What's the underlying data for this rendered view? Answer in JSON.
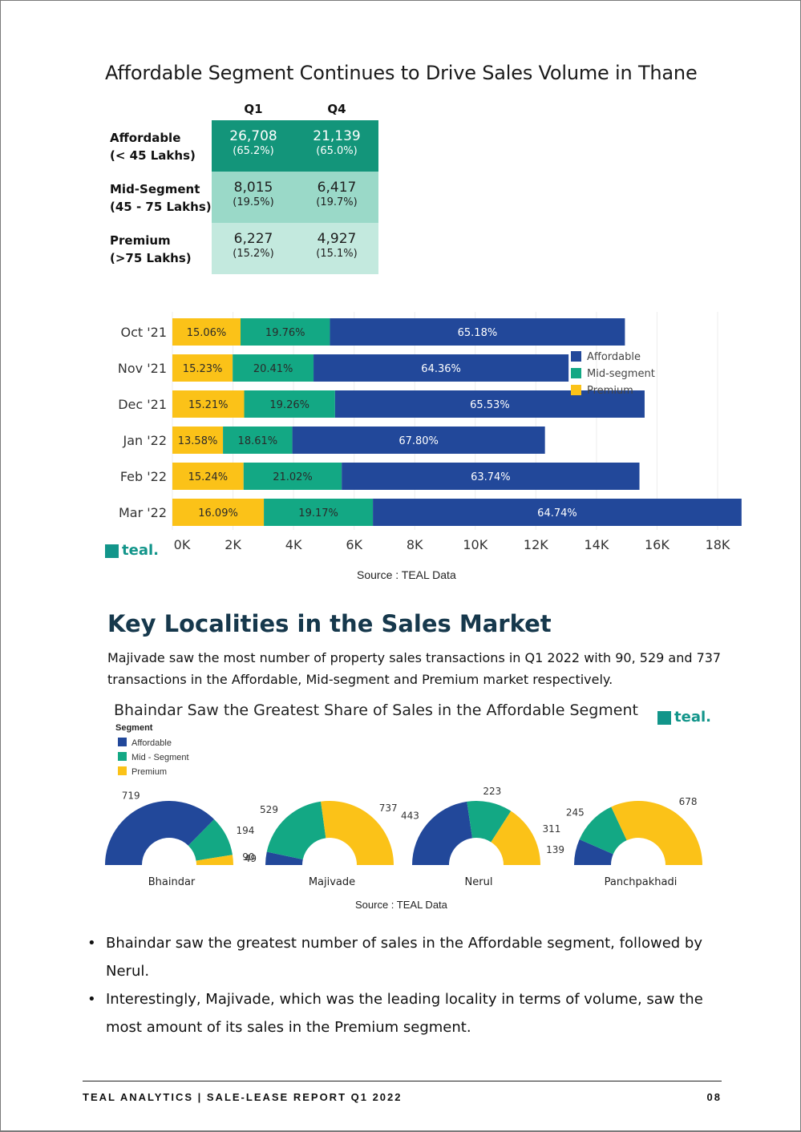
{
  "colors": {
    "affordable": "#22489a",
    "mid_segment": "#13a884",
    "premium": "#fbc218",
    "teal": "#12958a",
    "heading": "#16384c"
  },
  "title": "Affordable Segment Continues to Drive Sales Volume in Thane",
  "summary_table": {
    "headers": [
      "Q1",
      "Q4"
    ],
    "rows": [
      {
        "label_line1": "Affordable",
        "label_line2": "(< 45 Lakhs)",
        "q1": "26,708",
        "q1_pct": "(65.2%)",
        "q4": "21,139",
        "q4_pct": "(65.0%)"
      },
      {
        "label_line1": "Mid-Segment",
        "label_line2": "(45 - 75 Lakhs)",
        "q1": "8,015",
        "q1_pct": "(19.5%)",
        "q4": "6,417",
        "q4_pct": "(19.7%)"
      },
      {
        "label_line1": "Premium",
        "label_line2": "(>75 Lakhs)",
        "q1": "6,227",
        "q1_pct": "(15.2%)",
        "q4": "4,927",
        "q4_pct": "(15.1%)"
      }
    ]
  },
  "logo_text": "teal.",
  "source_text": "Source : TEAL Data",
  "section_heading": "Key Localities in the Sales Market",
  "section_text": "Majivade saw the most number of property sales transactions in Q1 2022 with 90, 529 and 737 transactions in the Affordable, Mid-segment and Premium market respectively.",
  "chart_data": [
    {
      "type": "bar",
      "orientation": "horizontal",
      "stacked": true,
      "categories": [
        "Oct '21",
        "Nov '21",
        "Dec '21",
        "Jan '22",
        "Feb '22",
        "Mar '22"
      ],
      "series": [
        {
          "name": "Premium",
          "values": [
            2250,
            1990,
            2370,
            1670,
            2350,
            3020
          ],
          "labels": [
            "15.06%",
            "15.23%",
            "15.21%",
            "13.58%",
            "15.24%",
            "16.09%"
          ]
        },
        {
          "name": "Mid-segment",
          "values": [
            2950,
            2670,
            3000,
            2290,
            3240,
            3600
          ],
          "labels": [
            "19.76%",
            "20.41%",
            "19.26%",
            "18.61%",
            "21.02%",
            "19.17%"
          ]
        },
        {
          "name": "Affordable",
          "values": [
            9740,
            8420,
            10220,
            8340,
            9830,
            12170
          ],
          "labels": [
            "65.18%",
            "64.36%",
            "65.53%",
            "67.80%",
            "63.74%",
            "64.74%"
          ]
        }
      ],
      "legend_order": [
        "Affordable",
        "Mid-segment",
        "Premium"
      ],
      "x_ticks": [
        "0K",
        "2K",
        "4K",
        "6K",
        "8K",
        "10K",
        "12K",
        "14K",
        "16K",
        "18K"
      ],
      "xlim": [
        0,
        18000
      ],
      "grid": true,
      "legend_position": "right"
    },
    {
      "type": "pie",
      "variant": "semi-donut",
      "title": "Bhaindar Saw the Greatest Share of Sales in the Affordable Segment",
      "legend_title": "Segment",
      "legend": [
        "Affordable",
        "Mid - Segment",
        "Premium"
      ],
      "localities": [
        {
          "name": "Bhaindar",
          "affordable": 719,
          "mid_segment": 194,
          "premium": 49
        },
        {
          "name": "Majivade",
          "affordable": 90,
          "mid_segment": 529,
          "premium": 737
        },
        {
          "name": "Nerul",
          "affordable": 443,
          "mid_segment": 223,
          "premium": 311
        },
        {
          "name": "Panchpakhadi",
          "affordable": 139,
          "mid_segment": 245,
          "premium": 678
        }
      ],
      "source": "Source : TEAL Data"
    }
  ],
  "bullets": [
    "Bhaindar saw the greatest number of sales in the Affordable segment, followed by Nerul.",
    "Interestingly, Majivade, which was the leading locality in terms of volume, saw the most amount of its sales in the Premium segment."
  ],
  "footer": {
    "left": "TEAL ANALYTICS | SALE-LEASE REPORT Q1 2022",
    "page": "08"
  }
}
